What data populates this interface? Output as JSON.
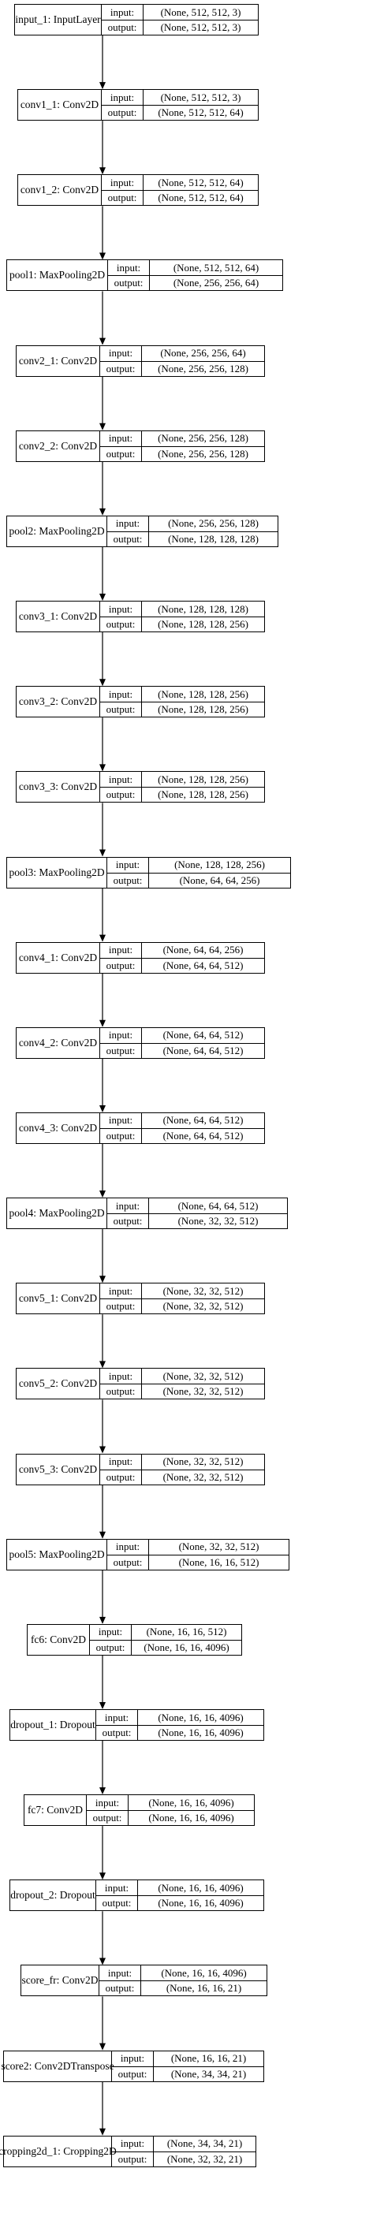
{
  "colors": {
    "stroke": "#000000",
    "background": "#ffffff"
  },
  "io_labels": {
    "input": "input:",
    "output": "output:"
  },
  "layers": [
    {
      "name": "input_1: InputLayer",
      "input": "(None, 512, 512, 3)",
      "output": "(None, 512, 512, 3)"
    },
    {
      "name": "conv1_1: Conv2D",
      "input": "(None, 512, 512, 3)",
      "output": "(None, 512, 512, 64)"
    },
    {
      "name": "conv1_2: Conv2D",
      "input": "(None, 512, 512, 64)",
      "output": "(None, 512, 512, 64)"
    },
    {
      "name": "pool1: MaxPooling2D",
      "input": "(None, 512, 512, 64)",
      "output": "(None, 256, 256, 64)"
    },
    {
      "name": "conv2_1: Conv2D",
      "input": "(None, 256, 256, 64)",
      "output": "(None, 256, 256, 128)"
    },
    {
      "name": "conv2_2: Conv2D",
      "input": "(None, 256, 256, 128)",
      "output": "(None, 256, 256, 128)"
    },
    {
      "name": "pool2: MaxPooling2D",
      "input": "(None, 256, 256, 128)",
      "output": "(None, 128, 128, 128)"
    },
    {
      "name": "conv3_1: Conv2D",
      "input": "(None, 128, 128, 128)",
      "output": "(None, 128, 128, 256)"
    },
    {
      "name": "conv3_2: Conv2D",
      "input": "(None, 128, 128, 256)",
      "output": "(None, 128, 128, 256)"
    },
    {
      "name": "conv3_3: Conv2D",
      "input": "(None, 128, 128, 256)",
      "output": "(None, 128, 128, 256)"
    },
    {
      "name": "pool3: MaxPooling2D",
      "input": "(None, 128, 128, 256)",
      "output": "(None, 64, 64, 256)"
    },
    {
      "name": "conv4_1: Conv2D",
      "input": "(None, 64, 64, 256)",
      "output": "(None, 64, 64, 512)"
    },
    {
      "name": "conv4_2: Conv2D",
      "input": "(None, 64, 64, 512)",
      "output": "(None, 64, 64, 512)"
    },
    {
      "name": "conv4_3: Conv2D",
      "input": "(None, 64, 64, 512)",
      "output": "(None, 64, 64, 512)"
    },
    {
      "name": "pool4: MaxPooling2D",
      "input": "(None, 64, 64, 512)",
      "output": "(None, 32, 32, 512)"
    },
    {
      "name": "conv5_1: Conv2D",
      "input": "(None, 32, 32, 512)",
      "output": "(None, 32, 32, 512)"
    },
    {
      "name": "conv5_2: Conv2D",
      "input": "(None, 32, 32, 512)",
      "output": "(None, 32, 32, 512)"
    },
    {
      "name": "conv5_3: Conv2D",
      "input": "(None, 32, 32, 512)",
      "output": "(None, 32, 32, 512)"
    },
    {
      "name": "pool5: MaxPooling2D",
      "input": "(None, 32, 32, 512)",
      "output": "(None, 16, 16, 512)"
    },
    {
      "name": "fc6: Conv2D",
      "input": "(None, 16, 16, 512)",
      "output": "(None, 16, 16, 4096)"
    },
    {
      "name": "dropout_1: Dropout",
      "input": "(None, 16, 16, 4096)",
      "output": "(None, 16, 16, 4096)"
    },
    {
      "name": "fc7: Conv2D",
      "input": "(None, 16, 16, 4096)",
      "output": "(None, 16, 16, 4096)"
    },
    {
      "name": "dropout_2: Dropout",
      "input": "(None, 16, 16, 4096)",
      "output": "(None, 16, 16, 4096)"
    },
    {
      "name": "score_fr: Conv2D",
      "input": "(None, 16, 16, 4096)",
      "output": "(None, 16, 16, 21)"
    },
    {
      "name": "score2: Conv2DTranspose",
      "input": "(None, 16, 16, 21)",
      "output": "(None, 34, 34, 21)"
    },
    {
      "name": "cropping2d_1: Cropping2D",
      "input": "(None, 34, 34, 21)",
      "output": "(None, 32, 32, 21)"
    }
  ]
}
